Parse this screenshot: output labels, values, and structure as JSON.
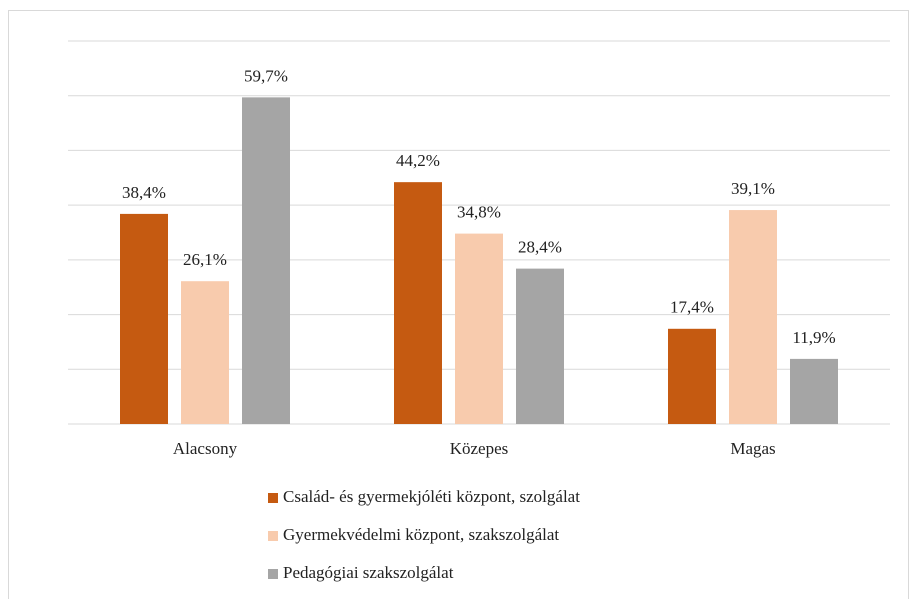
{
  "chart_data": {
    "type": "bar",
    "categories": [
      "Alacsony",
      "Közepes",
      "Magas"
    ],
    "series": [
      {
        "name": "Család- és gyermekjóléti központ, szolgálat",
        "color": "#c55a11",
        "values": [
          38.4,
          44.2,
          17.4
        ],
        "value_labels": [
          "38,4%",
          "44,2%",
          "17,4%"
        ]
      },
      {
        "name": "Gyermekvédelmi központ, szakszolgálat",
        "color": "#f8cbad",
        "values": [
          26.1,
          34.8,
          39.1
        ],
        "value_labels": [
          "26,1%",
          "34,8%",
          "39,1%"
        ]
      },
      {
        "name": "Pedagógiai szakszolgálat",
        "color": "#a5a5a5",
        "values": [
          59.7,
          28.4,
          11.9
        ],
        "value_labels": [
          "59,7%",
          "28,4%",
          "11,9%"
        ]
      }
    ],
    "ylim": [
      0,
      70
    ],
    "yticks": [
      0,
      10,
      20,
      30,
      40,
      50,
      60,
      70
    ],
    "grid": true,
    "legend": "bottom"
  }
}
